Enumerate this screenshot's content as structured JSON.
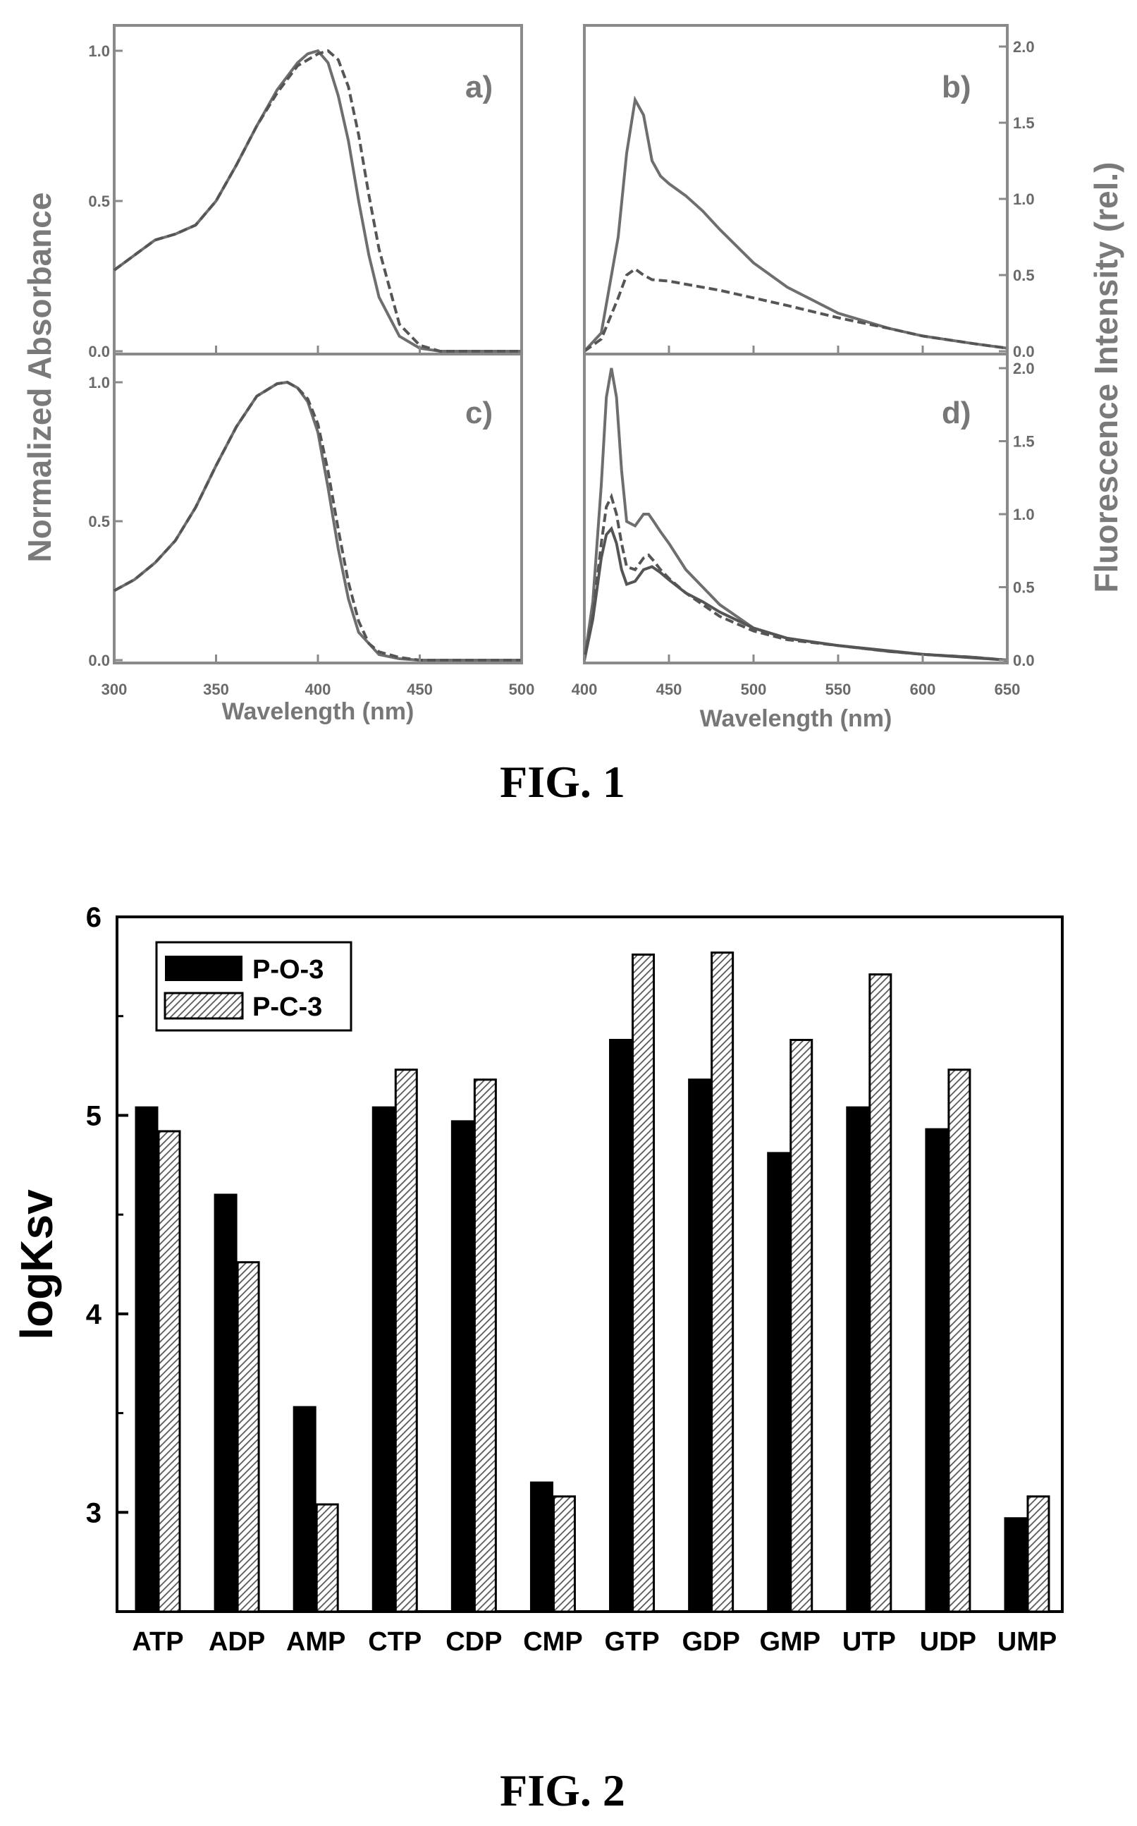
{
  "fig1": {
    "caption": "FIG. 1",
    "ylabel_left": "Normalized Absorbance",
    "ylabel_right": "Fluorescence Intensity (rel.)",
    "xlabel_left": "Wavelength (nm)",
    "xlabel_right": "Wavelength (nm)",
    "panels": {
      "a": "a)",
      "b": "b)",
      "c": "c)",
      "d": "d)"
    },
    "abs_yticks_top": [
      "0.0",
      "0.5",
      "1.0"
    ],
    "abs_yticks_bottom": [
      "0.0",
      "0.5",
      "1.0"
    ],
    "fl_yticks_top": [
      "0.0",
      "0.5",
      "1.0",
      "1.5",
      "2.0"
    ],
    "fl_yticks_bottom": [
      "0.0",
      "0.5",
      "1.0",
      "1.5",
      "2.0"
    ],
    "abs_xticks": [
      "300",
      "350",
      "400",
      "450",
      "500"
    ],
    "fl_xticks": [
      "400",
      "450",
      "500",
      "550",
      "600",
      "650"
    ]
  },
  "chart_data": [
    {
      "type": "line",
      "panel": "a)",
      "xlim": [
        300,
        500
      ],
      "ylim": [
        0,
        1.0
      ],
      "series": [
        {
          "style": "solid",
          "x": [
            300,
            310,
            320,
            330,
            340,
            350,
            360,
            370,
            380,
            390,
            395,
            400,
            405,
            410,
            415,
            420,
            425,
            430,
            440,
            450,
            460,
            480,
            500
          ],
          "y": [
            0.27,
            0.32,
            0.37,
            0.39,
            0.42,
            0.5,
            0.62,
            0.75,
            0.87,
            0.96,
            0.99,
            1.0,
            0.96,
            0.85,
            0.7,
            0.5,
            0.32,
            0.18,
            0.05,
            0.01,
            0.0,
            0.0,
            0.0
          ]
        },
        {
          "style": "dashed",
          "x": [
            300,
            310,
            320,
            330,
            340,
            350,
            360,
            370,
            380,
            390,
            400,
            405,
            410,
            415,
            420,
            425,
            430,
            440,
            450,
            460,
            480,
            500
          ],
          "y": [
            0.27,
            0.32,
            0.37,
            0.39,
            0.42,
            0.5,
            0.62,
            0.75,
            0.86,
            0.95,
            0.99,
            1.0,
            0.97,
            0.88,
            0.72,
            0.52,
            0.34,
            0.09,
            0.02,
            0.0,
            0.0,
            0.0
          ]
        }
      ]
    },
    {
      "type": "line",
      "panel": "b)",
      "xlim": [
        400,
        650
      ],
      "ylim": [
        0,
        2.0
      ],
      "series": [
        {
          "style": "solid",
          "x": [
            400,
            410,
            420,
            425,
            430,
            435,
            440,
            445,
            450,
            460,
            470,
            480,
            500,
            520,
            550,
            580,
            600,
            630,
            650
          ],
          "y": [
            0.0,
            0.12,
            0.75,
            1.3,
            1.65,
            1.55,
            1.25,
            1.15,
            1.1,
            1.02,
            0.92,
            0.8,
            0.58,
            0.42,
            0.25,
            0.15,
            0.1,
            0.05,
            0.02
          ]
        },
        {
          "style": "dashed",
          "x": [
            400,
            410,
            420,
            425,
            430,
            435,
            440,
            450,
            460,
            480,
            500,
            520,
            550,
            580,
            600,
            630,
            650
          ],
          "y": [
            0.0,
            0.08,
            0.35,
            0.5,
            0.54,
            0.5,
            0.47,
            0.46,
            0.44,
            0.4,
            0.35,
            0.3,
            0.22,
            0.15,
            0.1,
            0.05,
            0.02
          ]
        }
      ]
    },
    {
      "type": "line",
      "panel": "c)",
      "xlim": [
        300,
        500
      ],
      "ylim": [
        0,
        1.0
      ],
      "series": [
        {
          "style": "solid",
          "x": [
            300,
            310,
            320,
            330,
            340,
            350,
            360,
            370,
            380,
            385,
            390,
            395,
            400,
            405,
            410,
            415,
            420,
            430,
            440,
            450,
            470,
            500
          ],
          "y": [
            0.25,
            0.29,
            0.35,
            0.43,
            0.55,
            0.7,
            0.84,
            0.95,
            0.995,
            1.0,
            0.98,
            0.93,
            0.82,
            0.62,
            0.4,
            0.22,
            0.1,
            0.02,
            0.005,
            0.0,
            0.0,
            0.0
          ]
        },
        {
          "style": "dashed",
          "x": [
            300,
            310,
            320,
            330,
            340,
            350,
            360,
            370,
            380,
            385,
            390,
            395,
            400,
            405,
            410,
            415,
            420,
            425,
            430,
            440,
            450,
            470,
            500
          ],
          "y": [
            0.25,
            0.29,
            0.35,
            0.43,
            0.55,
            0.7,
            0.84,
            0.95,
            0.995,
            1.0,
            0.98,
            0.94,
            0.85,
            0.68,
            0.47,
            0.28,
            0.14,
            0.06,
            0.03,
            0.01,
            0.0,
            0.0,
            0.0
          ]
        }
      ]
    },
    {
      "type": "line",
      "panel": "d)",
      "xlim": [
        400,
        650
      ],
      "ylim": [
        0,
        2.0
      ],
      "series": [
        {
          "style": "solid",
          "x": [
            400,
            405,
            410,
            413,
            416,
            419,
            422,
            425,
            430,
            435,
            438,
            441,
            445,
            450,
            460,
            470,
            480,
            500,
            520,
            550,
            580,
            600,
            630,
            650
          ],
          "y": [
            0.0,
            0.4,
            1.2,
            1.8,
            2.0,
            1.8,
            1.3,
            0.95,
            0.92,
            1.0,
            1.0,
            0.95,
            0.88,
            0.8,
            0.62,
            0.5,
            0.38,
            0.22,
            0.15,
            0.1,
            0.06,
            0.04,
            0.02,
            0.0
          ]
        },
        {
          "style": "dashed",
          "x": [
            400,
            405,
            410,
            413,
            416,
            419,
            422,
            425,
            430,
            435,
            438,
            441,
            445,
            450,
            460,
            470,
            480,
            500,
            520,
            550,
            580,
            600,
            630,
            650
          ],
          "y": [
            0.0,
            0.3,
            0.8,
            1.05,
            1.12,
            1.0,
            0.8,
            0.64,
            0.62,
            0.7,
            0.72,
            0.68,
            0.62,
            0.56,
            0.46,
            0.38,
            0.3,
            0.2,
            0.14,
            0.1,
            0.06,
            0.04,
            0.02,
            0.0
          ]
        },
        {
          "style": "solid-2",
          "x": [
            400,
            405,
            410,
            413,
            416,
            419,
            422,
            425,
            430,
            435,
            440,
            445,
            450,
            460,
            470,
            480,
            500,
            520,
            550,
            600,
            650
          ],
          "y": [
            0.0,
            0.28,
            0.7,
            0.86,
            0.9,
            0.8,
            0.62,
            0.52,
            0.54,
            0.62,
            0.64,
            0.6,
            0.55,
            0.46,
            0.4,
            0.33,
            0.22,
            0.15,
            0.1,
            0.04,
            0.0
          ]
        }
      ]
    },
    {
      "type": "bar",
      "categories": [
        "ATP",
        "ADP",
        "AMP",
        "CTP",
        "CDP",
        "CMP",
        "GTP",
        "GDP",
        "GMP",
        "UTP",
        "UDP",
        "UMP"
      ],
      "ylabel": "logKsv",
      "ylim": [
        2.5,
        6.0
      ],
      "yticks": [
        "3",
        "4",
        "5",
        "6"
      ],
      "legend_position": "top-left",
      "series": [
        {
          "name": "P-O-3",
          "color": "#000000",
          "values": [
            5.04,
            4.6,
            3.53,
            5.04,
            4.97,
            3.15,
            5.38,
            5.18,
            4.81,
            5.04,
            4.93,
            2.97
          ]
        },
        {
          "name": "P-C-3",
          "color": "#9a9a9a",
          "values": [
            4.92,
            4.26,
            3.04,
            5.23,
            5.18,
            3.08,
            5.81,
            5.82,
            5.38,
            5.71,
            5.23,
            3.08
          ]
        }
      ]
    }
  ],
  "fig2": {
    "caption": "FIG. 2"
  }
}
